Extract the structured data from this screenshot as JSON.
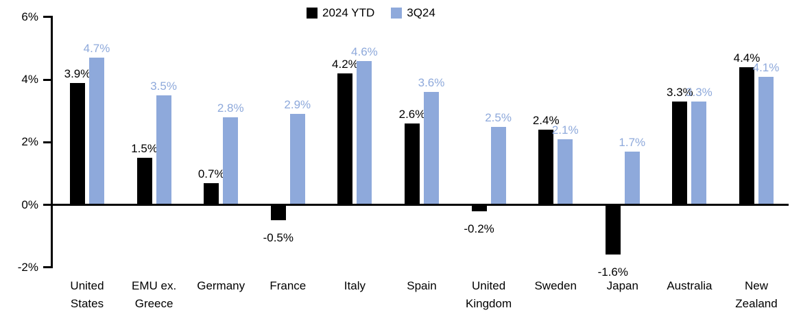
{
  "chart_data": {
    "type": "bar",
    "categories": [
      "United States",
      "EMU ex. Greece",
      "Germany",
      "France",
      "Italy",
      "Spain",
      "United Kingdom",
      "Sweden",
      "Japan",
      "Australia",
      "New Zealand"
    ],
    "series": [
      {
        "name": "2024 YTD",
        "color": "#000000",
        "values": [
          3.9,
          1.5,
          0.7,
          -0.5,
          4.2,
          2.6,
          -0.2,
          2.4,
          -1.6,
          3.3,
          4.4
        ],
        "labels": [
          "3.9%",
          "1.5%",
          "0.7%",
          "-0.5%",
          "4.2%",
          "2.6%",
          "-0.2%",
          "2.4%",
          "-1.6%",
          "3.3%",
          "4.4%"
        ]
      },
      {
        "name": "3Q24",
        "color": "#8EA9DB",
        "values": [
          4.7,
          3.5,
          2.8,
          2.9,
          4.6,
          3.6,
          2.5,
          2.1,
          1.7,
          3.3,
          4.1
        ],
        "labels": [
          "4.7%",
          "3.5%",
          "2.8%",
          "2.9%",
          "4.6%",
          "3.6%",
          "2.5%",
          "2.1%",
          "1.7%",
          "3.3%",
          "4.1%"
        ]
      }
    ],
    "yticks": [
      {
        "label": "6%",
        "value": 6
      },
      {
        "label": "4%",
        "value": 4
      },
      {
        "label": "2%",
        "value": 2
      },
      {
        "label": "0%",
        "value": 0
      },
      {
        "label": "-2%",
        "value": -2
      }
    ],
    "ylim": [
      -2,
      6
    ],
    "title": "",
    "xlabel": "",
    "ylabel": "",
    "grid": false,
    "legend_position": "top-center"
  }
}
